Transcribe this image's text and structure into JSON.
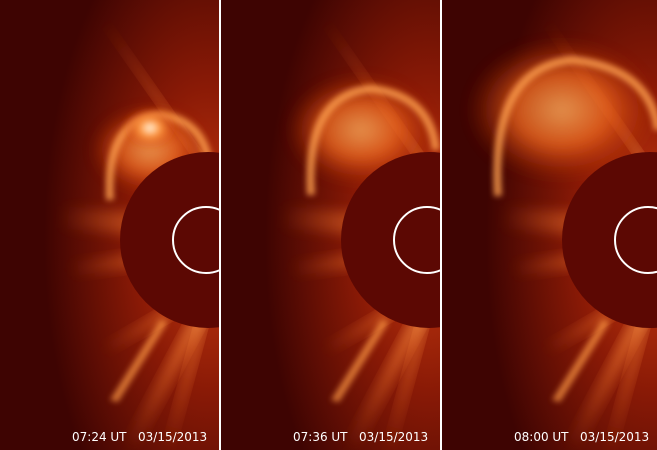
{
  "panels": [
    {
      "time": "07:24 UT",
      "date": "03/15/2013"
    },
    {
      "time": "07:36 UT",
      "date": "03/15/2013"
    },
    {
      "time": "08:00 UT",
      "date": "03/15/2013"
    }
  ]
}
